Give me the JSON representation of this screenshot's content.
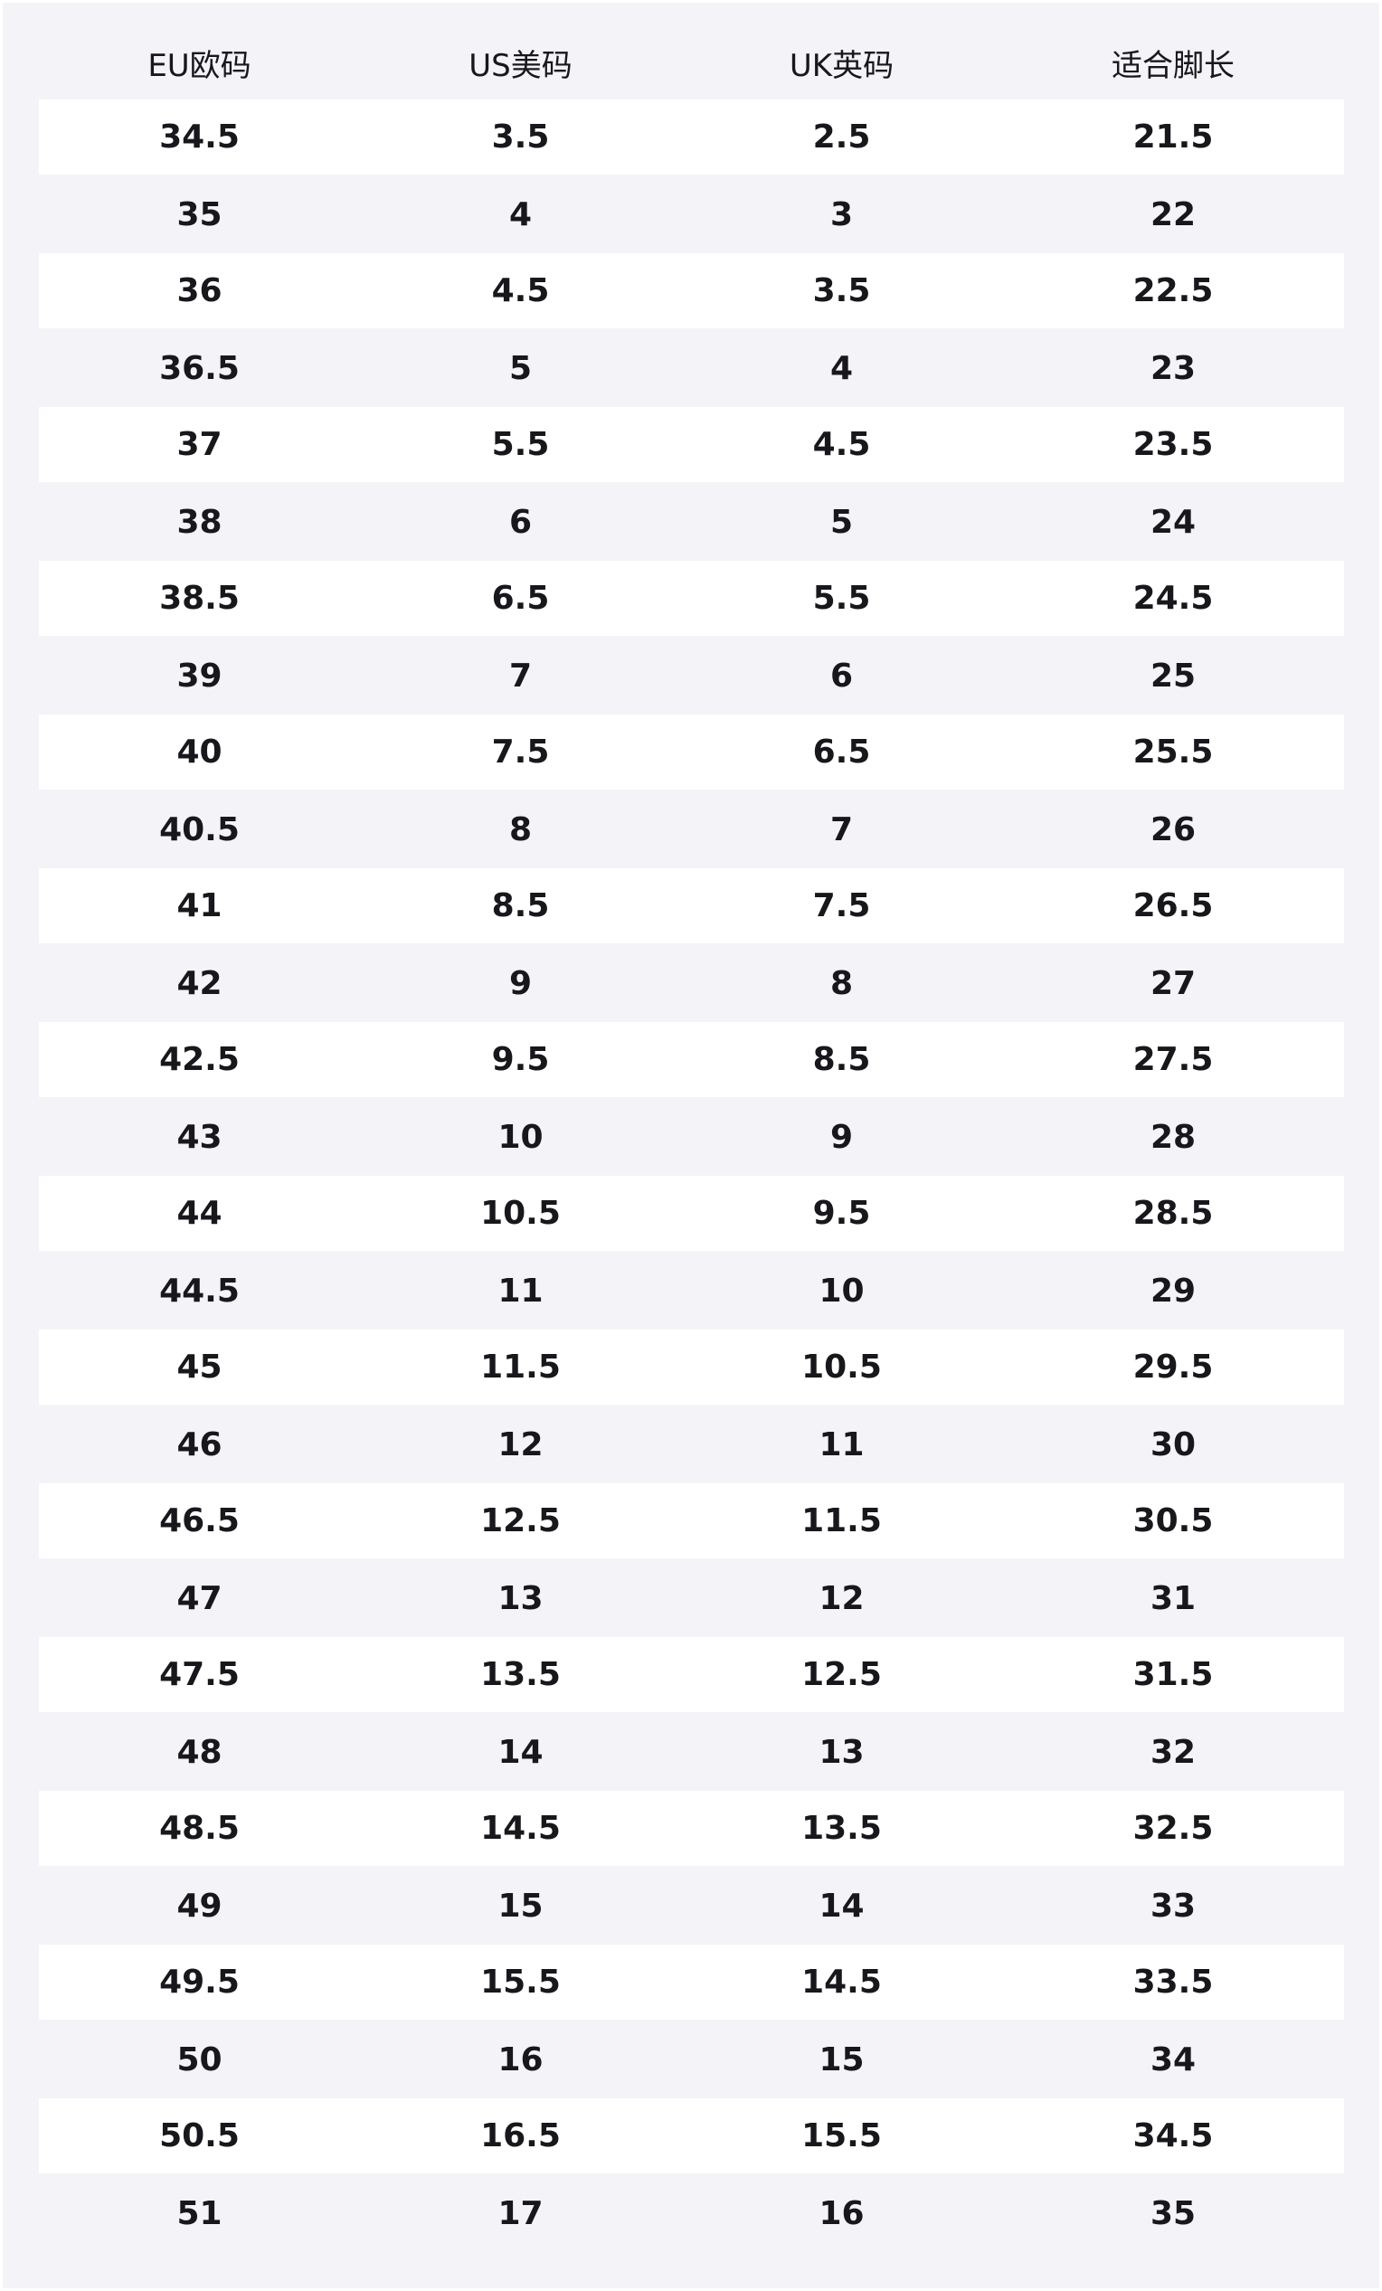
{
  "table": {
    "headers": [
      "EU欧码",
      "US美码",
      "UK英码",
      "适合脚长"
    ],
    "rows": [
      [
        "34.5",
        "3.5",
        "2.5",
        "21.5"
      ],
      [
        "35",
        "4",
        "3",
        "22"
      ],
      [
        "36",
        "4.5",
        "3.5",
        "22.5"
      ],
      [
        "36.5",
        "5",
        "4",
        "23"
      ],
      [
        "37",
        "5.5",
        "4.5",
        "23.5"
      ],
      [
        "38",
        "6",
        "5",
        "24"
      ],
      [
        "38.5",
        "6.5",
        "5.5",
        "24.5"
      ],
      [
        "39",
        "7",
        "6",
        "25"
      ],
      [
        "40",
        "7.5",
        "6.5",
        "25.5"
      ],
      [
        "40.5",
        "8",
        "7",
        "26"
      ],
      [
        "41",
        "8.5",
        "7.5",
        "26.5"
      ],
      [
        "42",
        "9",
        "8",
        "27"
      ],
      [
        "42.5",
        "9.5",
        "8.5",
        "27.5"
      ],
      [
        "43",
        "10",
        "9",
        "28"
      ],
      [
        "44",
        "10.5",
        "9.5",
        "28.5"
      ],
      [
        "44.5",
        "11",
        "10",
        "29"
      ],
      [
        "45",
        "11.5",
        "10.5",
        "29.5"
      ],
      [
        "46",
        "12",
        "11",
        "30"
      ],
      [
        "46.5",
        "12.5",
        "11.5",
        "30.5"
      ],
      [
        "47",
        "13",
        "12",
        "31"
      ],
      [
        "47.5",
        "13.5",
        "12.5",
        "31.5"
      ],
      [
        "48",
        "14",
        "13",
        "32"
      ],
      [
        "48.5",
        "14.5",
        "13.5",
        "32.5"
      ],
      [
        "49",
        "15",
        "14",
        "33"
      ],
      [
        "49.5",
        "15.5",
        "14.5",
        "33.5"
      ],
      [
        "50",
        "16",
        "15",
        "34"
      ],
      [
        "50.5",
        "16.5",
        "15.5",
        "34.5"
      ],
      [
        "51",
        "17",
        "16",
        "35"
      ]
    ]
  },
  "colors": {
    "background": "#f4f4f8",
    "stripe": "#ffffff",
    "text": "#17171c"
  }
}
